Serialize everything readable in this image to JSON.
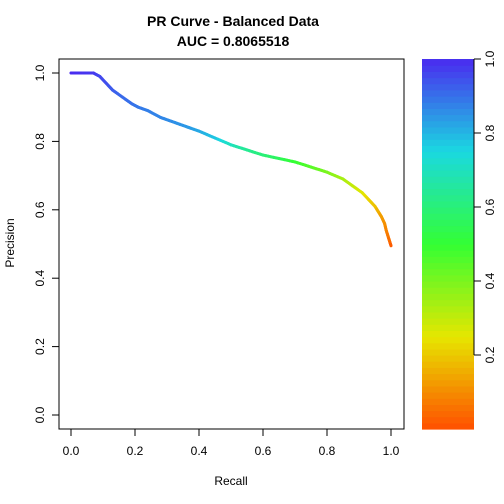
{
  "chart_data": {
    "type": "line",
    "title": "PR Curve - Balanced Data",
    "subtitle": "AUC = 0.8065518",
    "xlabel": "Recall",
    "ylabel": "Precision",
    "xlim": [
      0,
      1
    ],
    "ylim": [
      0,
      1
    ],
    "x_ticks": [
      "0.0",
      "0.2",
      "0.4",
      "0.6",
      "0.8",
      "1.0"
    ],
    "y_ticks": [
      "0.0",
      "0.2",
      "0.4",
      "0.6",
      "0.8",
      "1.0"
    ],
    "grid": false,
    "legend": "none",
    "series": [
      {
        "x": [
          0.0,
          0.03,
          0.07,
          0.09,
          0.11,
          0.13,
          0.16,
          0.19,
          0.21,
          0.24,
          0.28,
          0.31,
          0.34,
          0.37,
          0.4,
          0.45,
          0.5,
          0.55,
          0.6,
          0.65,
          0.7,
          0.75,
          0.8,
          0.85,
          0.88,
          0.91,
          0.93,
          0.95,
          0.96,
          0.97,
          0.98,
          0.985,
          0.99,
          0.995,
          1.0
        ],
        "y": [
          1.0,
          1.0,
          1.0,
          0.99,
          0.97,
          0.95,
          0.93,
          0.91,
          0.9,
          0.89,
          0.87,
          0.86,
          0.85,
          0.84,
          0.83,
          0.81,
          0.79,
          0.775,
          0.76,
          0.75,
          0.74,
          0.725,
          0.71,
          0.69,
          0.67,
          0.65,
          0.63,
          0.61,
          0.595,
          0.58,
          0.56,
          0.54,
          0.525,
          0.51,
          0.495
        ],
        "threshold": [
          1.0,
          0.99,
          0.98,
          0.96,
          0.95,
          0.93,
          0.91,
          0.9,
          0.89,
          0.88,
          0.87,
          0.86,
          0.85,
          0.84,
          0.82,
          0.78,
          0.7,
          0.64,
          0.6,
          0.56,
          0.5,
          0.45,
          0.4,
          0.34,
          0.3,
          0.26,
          0.22,
          0.19,
          0.16,
          0.13,
          0.11,
          0.09,
          0.07,
          0.05,
          0.02
        ]
      }
    ],
    "colorbar": {
      "range": [
        0,
        1
      ],
      "ticks": [
        "0.2",
        "0.4",
        "0.6",
        "0.8",
        "1.0"
      ],
      "colors": [
        "#ff4f00",
        "#e6e600",
        "#33ff33",
        "#1ad9e0",
        "#4a2bf0"
      ]
    }
  }
}
